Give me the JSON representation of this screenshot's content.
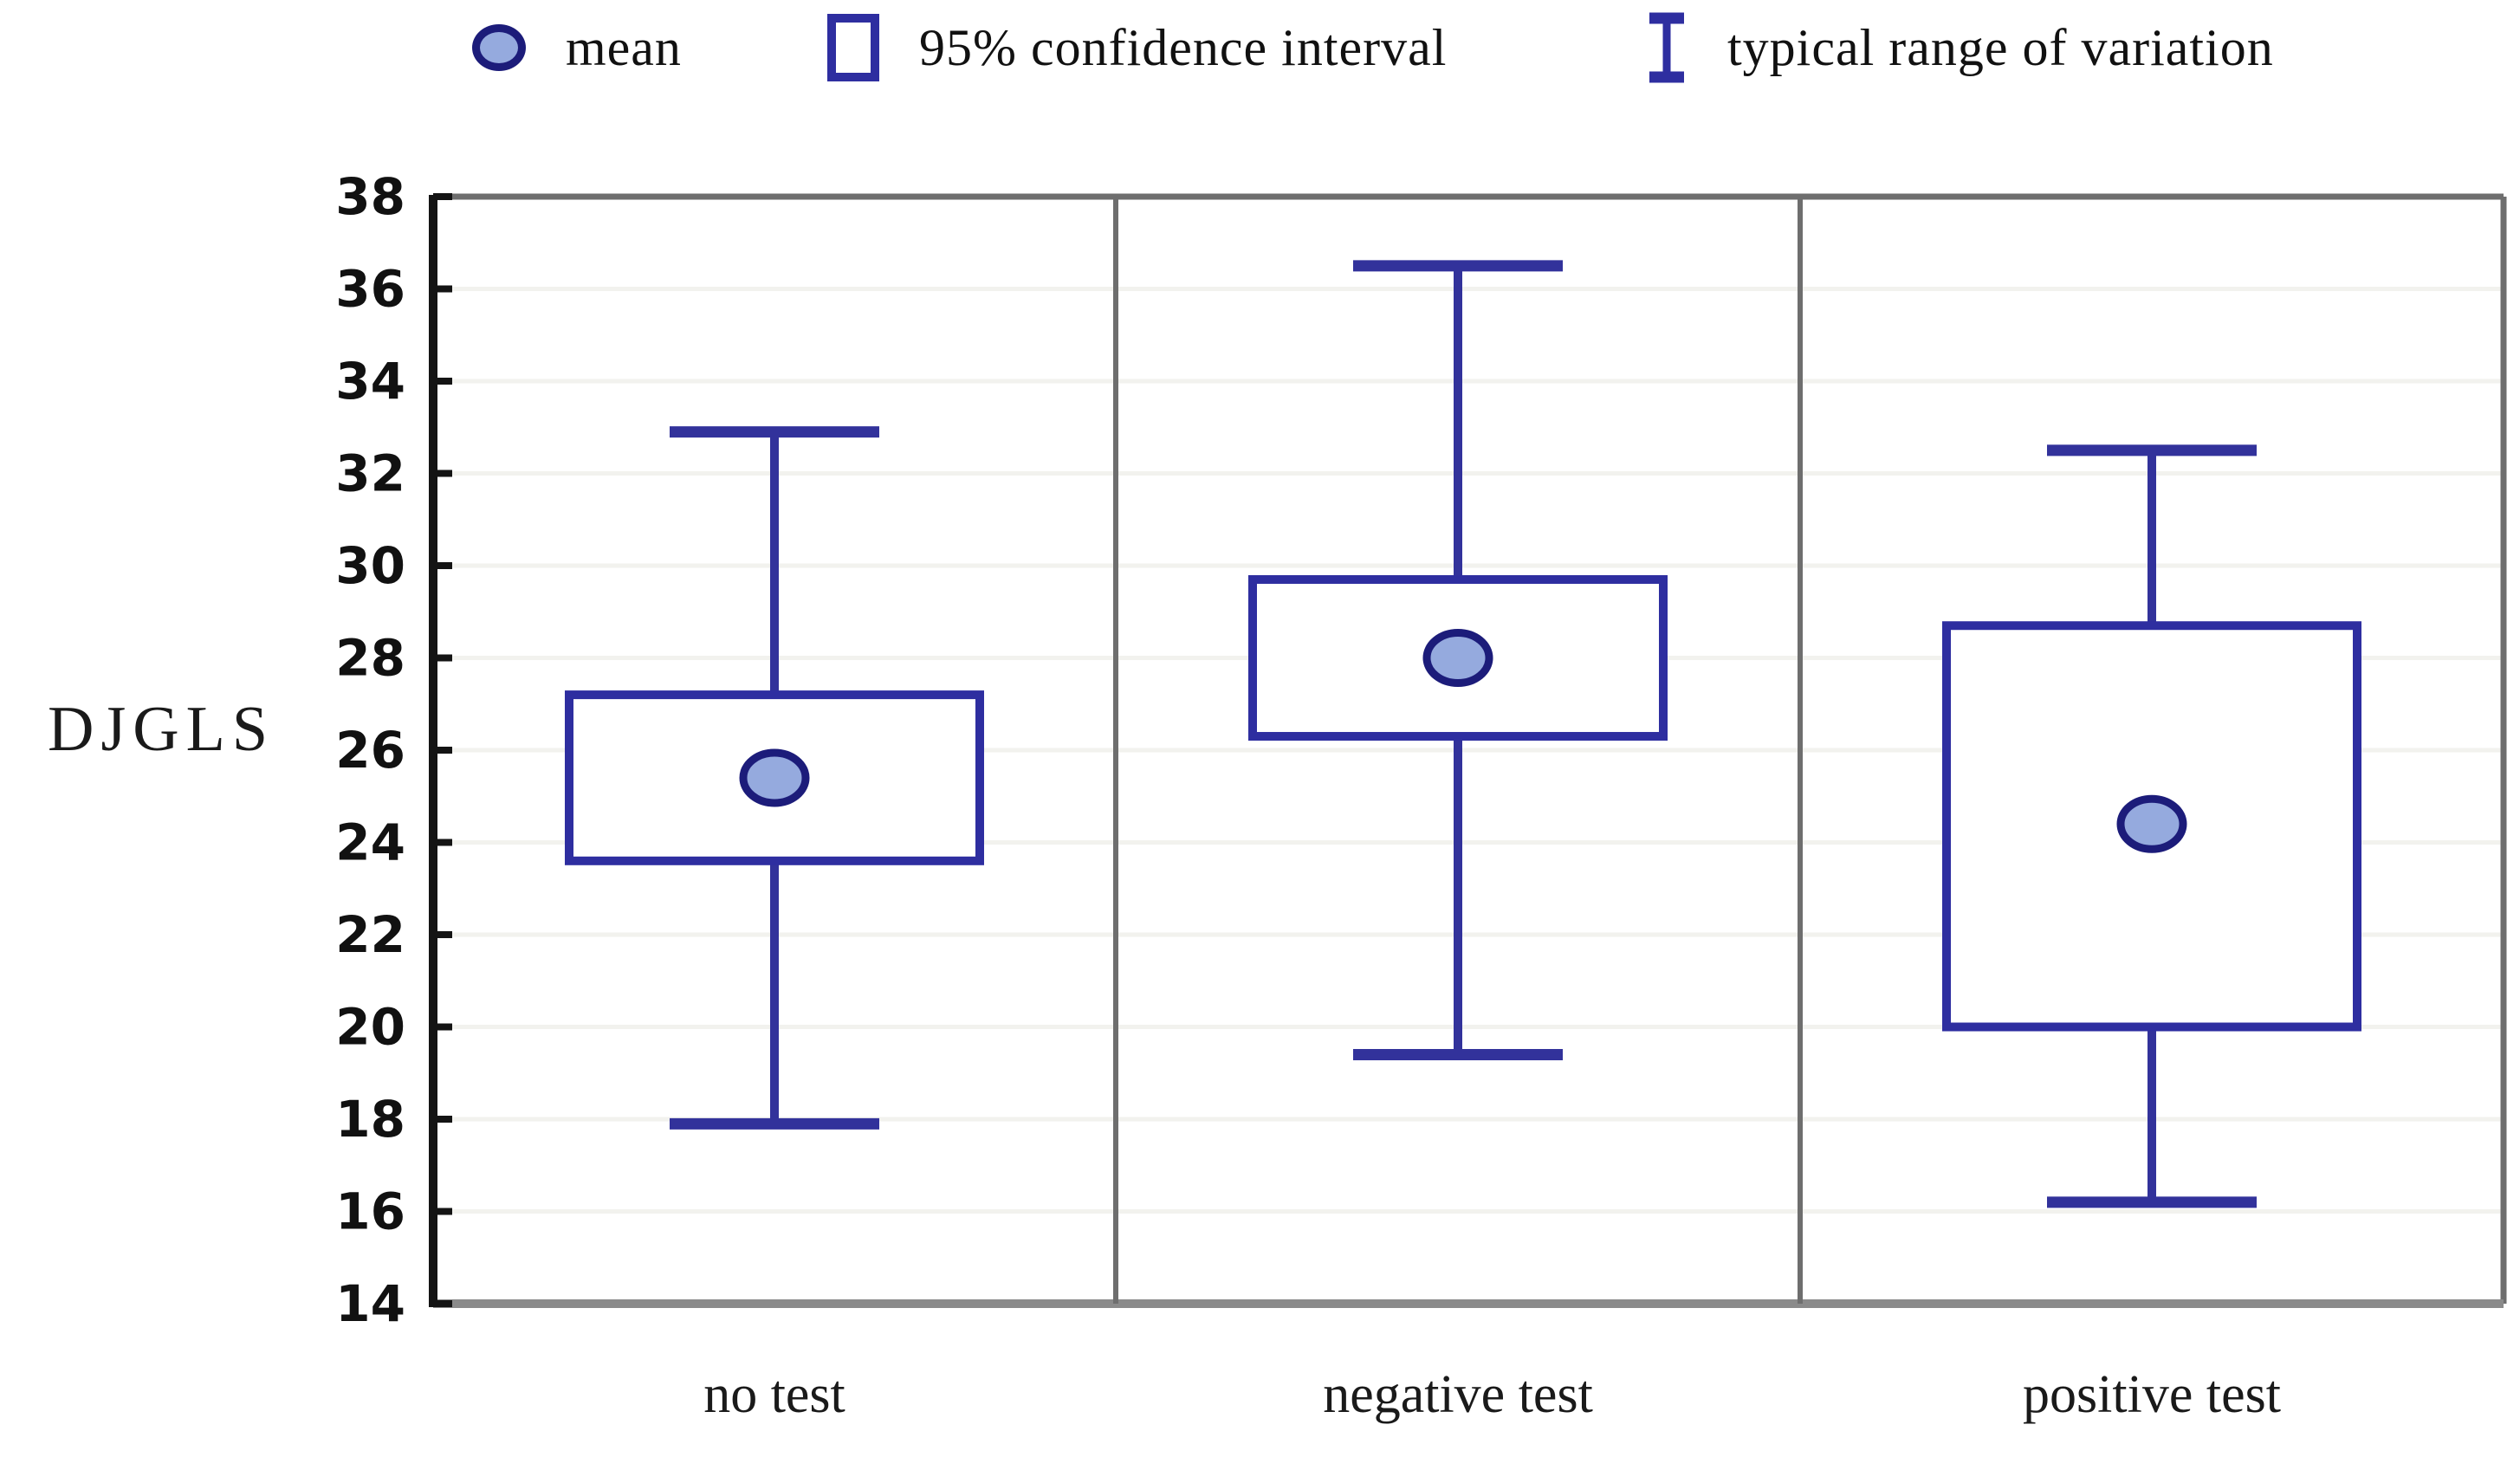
{
  "figure": {
    "legend": {
      "items": [
        {
          "glyph": "mean-marker",
          "label": "mean"
        },
        {
          "glyph": "ci-box",
          "label": "95% confidence interval"
        },
        {
          "glyph": "range-whisker",
          "label": "typical range of variation"
        }
      ]
    }
  },
  "chart_data": {
    "type": "box",
    "title": "",
    "xlabel": "",
    "ylabel": "DJGLS",
    "y_axis": {
      "min": 14,
      "max": 38,
      "tick_step": 2,
      "ticks": [
        38,
        36,
        34,
        32,
        30,
        28,
        26,
        24,
        22,
        20,
        18,
        16,
        14
      ]
    },
    "categories": [
      "no test",
      "negative test",
      "positive test"
    ],
    "series": [
      {
        "category": "no test",
        "mean": 25.4,
        "ci_low": 23.6,
        "ci_high": 27.2,
        "range_low": 17.9,
        "range_high": 32.9
      },
      {
        "category": "negative test",
        "mean": 28.0,
        "ci_low": 26.3,
        "ci_high": 29.7,
        "range_low": 19.4,
        "range_high": 36.5
      },
      {
        "category": "positive test",
        "mean": 24.4,
        "ci_low": 20.0,
        "ci_high": 28.7,
        "range_low": 16.2,
        "range_high": 32.5
      }
    ],
    "legend_position": "top",
    "grid": "horizontal-faint",
    "colors": {
      "box_stroke": "#2e2ea0",
      "whisker_stroke": "#32329b",
      "mean_fill": "#95aade",
      "mean_stroke": "#1c1c7a",
      "grid": "#f2f2ee",
      "frame": "#6e6e6e",
      "frame_bottom": "#8a8a8a",
      "axis": "#141414",
      "tick_label": "#111111"
    }
  }
}
